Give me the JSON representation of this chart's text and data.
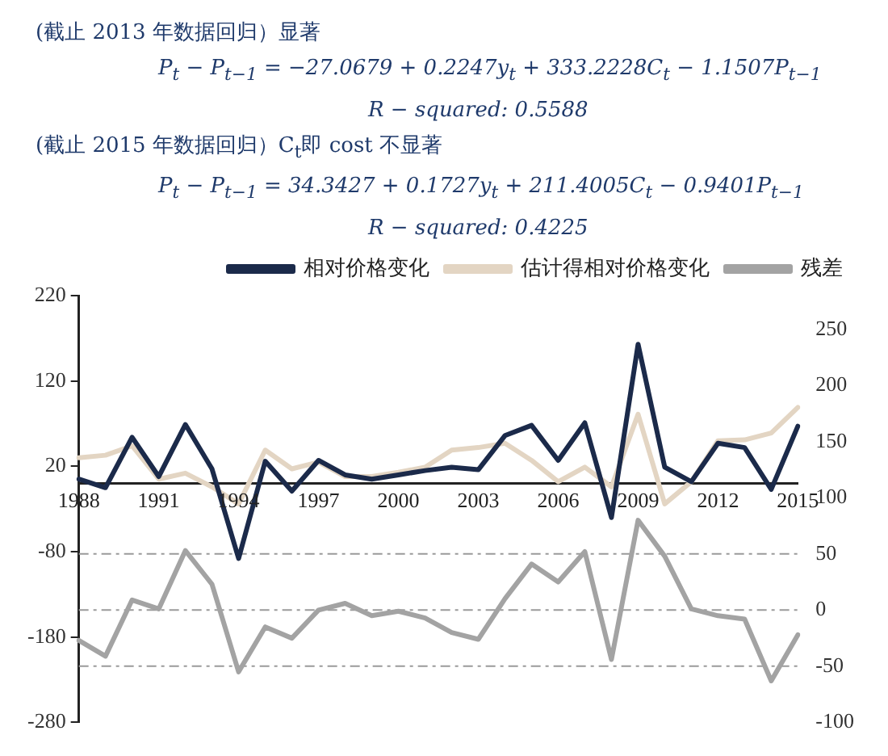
{
  "chart_data": {
    "type": "line",
    "annotations": [
      "(截止 2013 年数据回归）显著",
      "P$_{t}$ − P$_{t−1}$ = −27.0679 + 0.2247y$_{t}$ + 333.2228C$_{t}$ − 1.1507P$_{t−1}$",
      "R − squared: 0.5588",
      "(截止 2015 年数据回归）C$_{t}$即 cost 不显著",
      "P$_{t}$ − P$_{t−1}$ = 34.3427 + 0.1727y$_{t}$ + 211.4005C$_{t}$ − 0.9401P$_{t−1}$",
      "R − squared: 0.4225"
    ],
    "categories": [
      "1988",
      null,
      null,
      "1991",
      null,
      null,
      "1994",
      null,
      null,
      "1997",
      null,
      null,
      "2000",
      null,
      null,
      "2003",
      null,
      null,
      "2006",
      null,
      null,
      "2009",
      null,
      null,
      "2012",
      null,
      null,
      "2015"
    ],
    "series": [
      {
        "name": "相对价格变化",
        "color": "#1b2a4a",
        "values": [
          5,
          -5,
          54,
          8,
          69,
          17,
          -88,
          26,
          -9,
          27,
          10,
          5,
          10,
          15,
          19,
          16,
          56,
          68,
          27,
          71,
          -40,
          163,
          19,
          2,
          47,
          42,
          -7,
          67
        ]
      },
      {
        "name": "估计得相对价格变化",
        "color": "#e3d5c3",
        "values": [
          30,
          33,
          44,
          5,
          12,
          -4,
          -24,
          39,
          17,
          25,
          8,
          8,
          13,
          19,
          39,
          42,
          47,
          27,
          2,
          19,
          -4,
          81,
          -24,
          2,
          50,
          51,
          59,
          89
        ]
      },
      {
        "name": "残差",
        "color": "#a3a3a3",
        "axis": "y2",
        "values": [
          -27,
          -41,
          9,
          1,
          53,
          23,
          -55,
          -15,
          -25,
          0,
          6,
          -5,
          -1,
          -7,
          -20,
          -26,
          10,
          41,
          25,
          52,
          -44,
          80,
          48,
          1,
          -5,
          -8,
          -63,
          -22
        ]
      }
    ],
    "ylim": [
      -280,
      220
    ],
    "yticks": [
      -280,
      -180,
      -80,
      20,
      120,
      220
    ],
    "y2lim": [
      -100,
      280
    ],
    "y2ticks": [
      -100,
      -50,
      0,
      50,
      100,
      150,
      200,
      250
    ],
    "ref_lines": [
      {
        "axis": "y2",
        "value": 50,
        "color": "#9a9a9a",
        "line_style": "dashed"
      },
      {
        "axis": "y2",
        "value": 0,
        "color": "#9a9a9a",
        "line_style": "dashed"
      },
      {
        "axis": "y2",
        "value": -50,
        "color": "#9a9a9a",
        "line_style": "dashed"
      }
    ],
    "grid": false,
    "legend": "top",
    "marker": "none",
    "line_style": "solid"
  }
}
